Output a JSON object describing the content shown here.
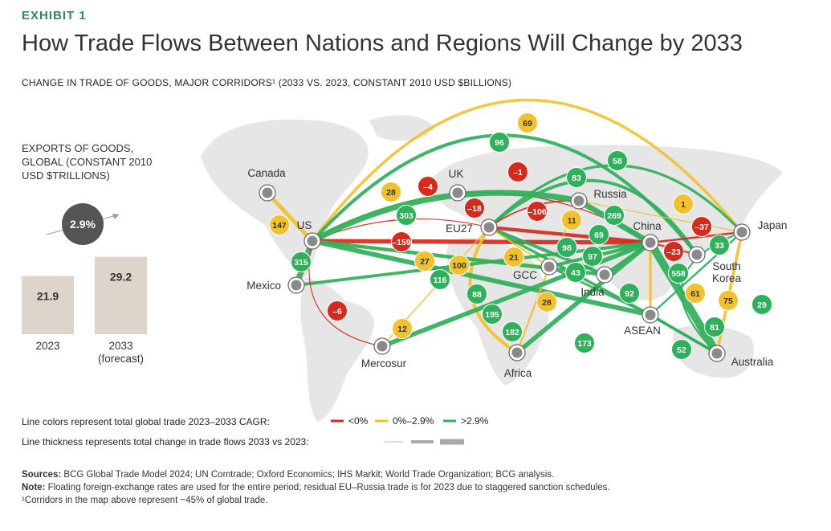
{
  "exhibit_label": "EXHIBIT 1",
  "title": "How Trade Flows Between Nations and Regions Will Change by 2033",
  "subtitle": "CHANGE IN TRADE OF GOODS, MAJOR CORRIDORS¹ (2033 VS. 2023, CONSTANT 2010 USD $BILLIONS)",
  "colors": {
    "negative": "#d52b1e",
    "low": "#f2c12e",
    "high": "#2fb05a",
    "node": "#8a8a8a",
    "bar": "#ddd5cc",
    "cagr_circle": "#555555",
    "brand": "#2e8b57"
  },
  "exports": {
    "label_lines": [
      "EXPORTS OF GOODS,",
      "GLOBAL (CONSTANT 2010",
      "USD $TRILLIONS)"
    ],
    "cagr": "2.9%",
    "bars": [
      {
        "label": "2023",
        "value": 21.9,
        "value_text": "21.9",
        "sublabel": ""
      },
      {
        "label": "2033",
        "value": 29.2,
        "value_text": "29.2",
        "sublabel": "(forecast)"
      }
    ]
  },
  "chart_data": {
    "type": "flow-map",
    "nodes": [
      "Canada",
      "US",
      "Mexico",
      "Mercosur",
      "UK",
      "EU27",
      "Russia",
      "GCC",
      "Africa",
      "India",
      "China",
      "ASEAN",
      "Japan",
      "South Korea",
      "Australia"
    ],
    "node_labels": {
      "Canada": "Canada",
      "US": "US",
      "Mexico": "Mexico",
      "Mercosur": "Mercosur",
      "UK": "UK",
      "EU27": "EU27",
      "Russia": "Russia",
      "GCC": "GCC",
      "Africa": "Africa",
      "India": "India",
      "China": "China",
      "ASEAN": "ASEAN",
      "Japan": "Japan",
      "South Korea": "South\nKorea",
      "Australia": "Australia"
    },
    "flows": [
      {
        "from": "US",
        "to": "Japan",
        "value": 69,
        "category": "0%–2.9%"
      },
      {
        "from": "US",
        "to": "South Korea",
        "value": 96,
        "category": ">2.9%"
      },
      {
        "from": "EU27",
        "to": "Japan",
        "value": 58,
        "category": ">2.9%"
      },
      {
        "from": "EU27",
        "to": "South Korea",
        "value": 83,
        "category": ">2.9%"
      },
      {
        "from": "US",
        "to": "UK",
        "value": 28,
        "category": "0%–2.9%"
      },
      {
        "from": "US",
        "to": "EU27",
        "value": -4,
        "category": "<0%"
      },
      {
        "from": "UK",
        "to": "China",
        "value": -1,
        "category": "<0%"
      },
      {
        "from": "EU27",
        "to": "Russia",
        "value": -18,
        "category": "<0%"
      },
      {
        "from": "EU27",
        "to": "China",
        "value": -106,
        "category": "<0%"
      },
      {
        "from": "Russia",
        "to": "Japan",
        "value": 1,
        "category": "0%–2.9%"
      },
      {
        "from": "Canada",
        "to": "US",
        "value": 147,
        "category": "0%–2.9%"
      },
      {
        "from": "US",
        "to": "Russia",
        "value": 303,
        "category": ">2.9%"
      },
      {
        "from": "Russia",
        "to": "GCC",
        "value": 11,
        "category": "0%–2.9%"
      },
      {
        "from": "Russia",
        "to": "China",
        "value": 269,
        "category": ">2.9%"
      },
      {
        "from": "China",
        "to": "Japan",
        "value": -37,
        "category": "<0%"
      },
      {
        "from": "US",
        "to": "China",
        "value": -159,
        "category": "<0%"
      },
      {
        "from": "EU27",
        "to": "India",
        "value": 98,
        "category": ">2.9%"
      },
      {
        "from": "EU27",
        "to": "ASEAN",
        "value": 69,
        "category": ">2.9%"
      },
      {
        "from": "China",
        "to": "South Korea",
        "value": -23,
        "category": "<0%"
      },
      {
        "from": "Japan",
        "to": "ASEAN",
        "value": 33,
        "category": ">2.9%"
      },
      {
        "from": "US",
        "to": "Mexico",
        "value": 315,
        "category": ">2.9%"
      },
      {
        "from": "US",
        "to": "GCC",
        "value": 27,
        "category": "0%–2.9%"
      },
      {
        "from": "EU27",
        "to": "Africa",
        "value": 100,
        "category": "0%–2.9%"
      },
      {
        "from": "EU27",
        "to": "GCC",
        "value": 21,
        "category": "0%–2.9%"
      },
      {
        "from": "GCC",
        "to": "China",
        "value": 97,
        "category": ">2.9%"
      },
      {
        "from": "US",
        "to": "India",
        "value": 116,
        "category": ">2.9%"
      },
      {
        "from": "GCC",
        "to": "ASEAN",
        "value": 43,
        "category": ">2.9%"
      },
      {
        "from": "China",
        "to": "Australia",
        "value": 558,
        "category": ">2.9%"
      },
      {
        "from": "Mexico",
        "to": "China",
        "value": 88,
        "category": ">2.9%"
      },
      {
        "from": "India",
        "to": "China",
        "value": 92,
        "category": ">2.9%"
      },
      {
        "from": "China",
        "to": "ASEAN",
        "value": 61,
        "category": "0%–2.9%"
      },
      {
        "from": "Japan",
        "to": "Australia",
        "value": 75,
        "category": "0%–2.9%"
      },
      {
        "from": "US",
        "to": "Mercosur",
        "value": -6,
        "category": "<0%"
      },
      {
        "from": "US",
        "to": "ASEAN",
        "value": 195,
        "category": ">2.9%"
      },
      {
        "from": "EU27",
        "to": "Mercosur",
        "value": 12,
        "category": "0%–2.9%"
      },
      {
        "from": "GCC",
        "to": "Africa",
        "value": 28,
        "category": "0%–2.9%"
      },
      {
        "from": "China",
        "to": "Africa",
        "value": 182,
        "category": ">2.9%"
      },
      {
        "from": "Mercosur",
        "to": "China",
        "value": 173,
        "category": ">2.9%"
      },
      {
        "from": "ASEAN",
        "to": "Australia",
        "value": 52,
        "category": ">2.9%"
      },
      {
        "from": "ASEAN",
        "to": "Australia",
        "value": 81,
        "category": ">2.9%"
      },
      {
        "from": "Japan",
        "to": "Australia",
        "value": 29,
        "category": ">2.9%"
      }
    ]
  },
  "legend": {
    "colors_label": "Line colors represent total global trade 2023–2033 CAGR:",
    "items": [
      {
        "label": "<0%",
        "color": "#d52b1e"
      },
      {
        "label": "0%–2.9%",
        "color": "#f2c12e"
      },
      {
        "label": ">2.9%",
        "color": "#2fb05a"
      }
    ],
    "thickness_label": "Line thickness represents total change in trade flows 2033 vs 2023:"
  },
  "footer": {
    "sources_label": "Sources:",
    "sources_text": " BCG Global Trade Model 2024; UN Comtrade; Oxford Economics; IHS Markit; World Trade Organization; BCG analysis.",
    "note_label": "Note:",
    "note_text": " Floating foreign-exchange rates are used for the entire period; residual EU–Russia trade is for 2023 due to staggered sanction schedules.",
    "footnote": "¹Corridors in the map above represent ~45% of global trade."
  }
}
